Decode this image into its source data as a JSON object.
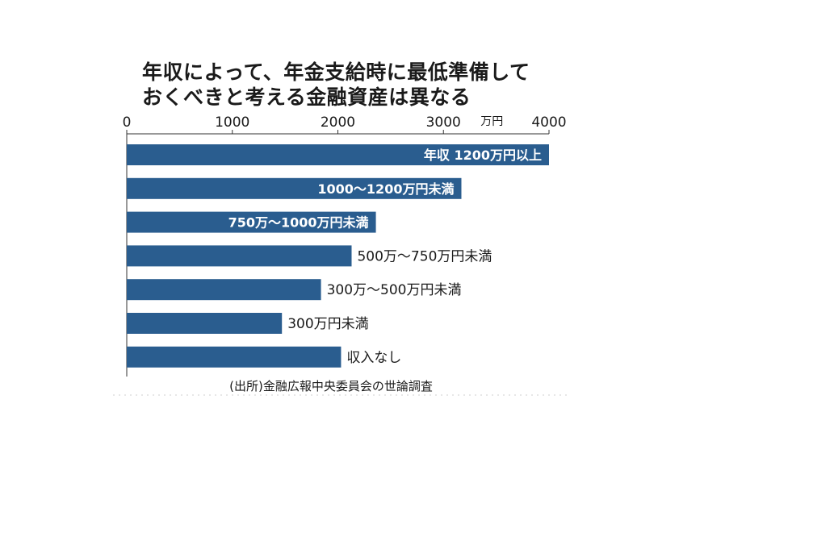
{
  "chart_data": {
    "type": "bar",
    "orientation": "horizontal",
    "title_lines": [
      "年収によって、年金支給時に最低準備して",
      "おくべきと考える金融資産は異なる"
    ],
    "unit": "万円",
    "xlim": [
      0,
      4000
    ],
    "ticks": [
      "0",
      "1000",
      "2000",
      "3000",
      "4000"
    ],
    "tick_values": [
      0,
      1000,
      2000,
      3000,
      4000
    ],
    "categories": [
      "年収 1200万円以上",
      "1000～1200万円未満",
      "750万～1000万円未満",
      "500万～750万円未満",
      "300万～500万円未満",
      "300万円未満",
      "収入なし"
    ],
    "values": [
      4000,
      3170,
      2360,
      2130,
      1840,
      1470,
      2030
    ],
    "label_inside": [
      true,
      true,
      true,
      false,
      false,
      false,
      false
    ],
    "bar_color": "#2a5d8f",
    "source": "(出所)金融広報中央委員会の世論調査"
  }
}
